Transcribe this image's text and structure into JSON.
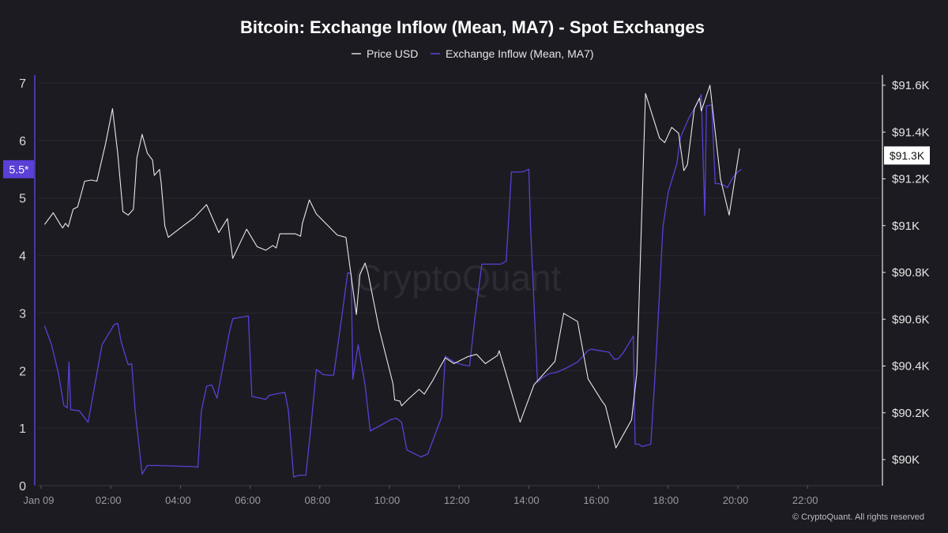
{
  "chart_data": {
    "type": "line",
    "title": "Bitcoin: Exchange Inflow (Mean, MA7) - Spot Exchanges",
    "legend_placement": "top-center",
    "grid": true,
    "watermark": "CryptoQuant",
    "copyright": "© CryptoQuant. All rights reserved",
    "x_axis": {
      "unit": "hours since Jan 09 00:00",
      "range": [
        0,
        24
      ],
      "ticks": [
        {
          "x": 0,
          "label": "Jan 09"
        },
        {
          "x": 2,
          "label": "02:00"
        },
        {
          "x": 4,
          "label": "04:00"
        },
        {
          "x": 6,
          "label": "06:00"
        },
        {
          "x": 8,
          "label": "08:00"
        },
        {
          "x": 10,
          "label": "10:00"
        },
        {
          "x": 12,
          "label": "12:00"
        },
        {
          "x": 14,
          "label": "14:00"
        },
        {
          "x": 16,
          "label": "16:00"
        },
        {
          "x": 18,
          "label": "18:00"
        },
        {
          "x": 20,
          "label": "20:00"
        },
        {
          "x": 22,
          "label": "22:00"
        }
      ]
    },
    "y_left": {
      "range": [
        0,
        7
      ],
      "ticks": [
        {
          "v": 0,
          "label": "0"
        },
        {
          "v": 1,
          "label": "1"
        },
        {
          "v": 2,
          "label": "2"
        },
        {
          "v": 3,
          "label": "3"
        },
        {
          "v": 4,
          "label": "4"
        },
        {
          "v": 5,
          "label": "5"
        },
        {
          "v": 6,
          "label": "6"
        },
        {
          "v": 7,
          "label": "7"
        }
      ],
      "current_label": "5.5*",
      "current_value": 5.5,
      "color": "#5b3fd6"
    },
    "y_right": {
      "unit": "USD",
      "range": [
        89890,
        91650
      ],
      "ticks": [
        {
          "v": 90000,
          "label": "$90K"
        },
        {
          "v": 90200,
          "label": "$90.2K"
        },
        {
          "v": 90400,
          "label": "$90.4K"
        },
        {
          "v": 90600,
          "label": "$90.6K"
        },
        {
          "v": 90800,
          "label": "$90.8K"
        },
        {
          "v": 91000,
          "label": "$91K"
        },
        {
          "v": 91200,
          "label": "$91.2K"
        },
        {
          "v": 91400,
          "label": "$91.4K"
        },
        {
          "v": 91600,
          "label": "$91.6K"
        }
      ],
      "current_label": "$91.3K",
      "current_value": 91300
    },
    "series": [
      {
        "name": "Price USD",
        "axis": "right",
        "color": "#e8e8e8",
        "points": [
          [
            0.1,
            91005
          ],
          [
            0.35,
            91055
          ],
          [
            0.55,
            91005
          ],
          [
            0.62,
            90990
          ],
          [
            0.7,
            91010
          ],
          [
            0.78,
            90995
          ],
          [
            0.92,
            91070
          ],
          [
            1.05,
            91080
          ],
          [
            1.25,
            91190
          ],
          [
            1.45,
            91195
          ],
          [
            1.6,
            91190
          ],
          [
            1.85,
            91350
          ],
          [
            2.05,
            91500
          ],
          [
            2.2,
            91310
          ],
          [
            2.35,
            91060
          ],
          [
            2.5,
            91045
          ],
          [
            2.65,
            91070
          ],
          [
            2.75,
            91290
          ],
          [
            2.9,
            91390
          ],
          [
            3.05,
            91310
          ],
          [
            3.2,
            91280
          ],
          [
            3.25,
            91215
          ],
          [
            3.4,
            91240
          ],
          [
            3.45,
            91180
          ],
          [
            3.55,
            91000
          ],
          [
            3.65,
            90950
          ],
          [
            4.0,
            90990
          ],
          [
            4.4,
            91035
          ],
          [
            4.75,
            91090
          ],
          [
            5.1,
            90970
          ],
          [
            5.35,
            91030
          ],
          [
            5.5,
            90860
          ],
          [
            5.9,
            90985
          ],
          [
            6.2,
            90910
          ],
          [
            6.45,
            90895
          ],
          [
            6.65,
            90915
          ],
          [
            6.75,
            90905
          ],
          [
            6.85,
            90965
          ],
          [
            7.3,
            90965
          ],
          [
            7.45,
            90955
          ],
          [
            7.5,
            91010
          ],
          [
            7.7,
            91110
          ],
          [
            7.9,
            91050
          ],
          [
            8.2,
            91005
          ],
          [
            8.5,
            90960
          ],
          [
            8.75,
            90950
          ],
          [
            9.05,
            90620
          ],
          [
            9.15,
            90790
          ],
          [
            9.3,
            90840
          ],
          [
            9.38,
            90800
          ],
          [
            9.7,
            90560
          ],
          [
            10.1,
            90325
          ],
          [
            10.15,
            90255
          ],
          [
            10.3,
            90250
          ],
          [
            10.35,
            90230
          ],
          [
            10.55,
            90260
          ],
          [
            10.85,
            90300
          ],
          [
            11.0,
            90280
          ],
          [
            11.25,
            90340
          ],
          [
            11.45,
            90395
          ],
          [
            11.6,
            90435
          ],
          [
            11.85,
            90410
          ],
          [
            12.25,
            90440
          ],
          [
            12.5,
            90450
          ],
          [
            12.75,
            90410
          ],
          [
            13.1,
            90445
          ],
          [
            13.15,
            90465
          ],
          [
            13.35,
            90365
          ],
          [
            13.75,
            90160
          ],
          [
            14.15,
            90320
          ],
          [
            14.75,
            90420
          ],
          [
            15.0,
            90625
          ],
          [
            15.4,
            90590
          ],
          [
            15.7,
            90345
          ],
          [
            16.1,
            90250
          ],
          [
            16.2,
            90230
          ],
          [
            16.5,
            90050
          ],
          [
            16.95,
            90170
          ],
          [
            17.1,
            90370
          ],
          [
            17.35,
            91565
          ],
          [
            17.75,
            91375
          ],
          [
            17.9,
            91355
          ],
          [
            18.1,
            91420
          ],
          [
            18.3,
            91395
          ],
          [
            18.45,
            91235
          ],
          [
            18.55,
            91260
          ],
          [
            18.75,
            91500
          ],
          [
            18.9,
            91545
          ],
          [
            18.95,
            91490
          ],
          [
            19.2,
            91600
          ],
          [
            19.5,
            91200
          ],
          [
            19.75,
            91045
          ],
          [
            20.05,
            91330
          ]
        ]
      },
      {
        "name": "Exchange Inflow (Mean, MA7)",
        "axis": "left",
        "color": "#5b3fd6",
        "points": [
          [
            0.1,
            2.78
          ],
          [
            0.3,
            2.45
          ],
          [
            0.5,
            1.95
          ],
          [
            0.65,
            1.4
          ],
          [
            0.75,
            1.35
          ],
          [
            0.8,
            2.15
          ],
          [
            0.85,
            1.32
          ],
          [
            1.1,
            1.3
          ],
          [
            1.35,
            1.1
          ],
          [
            1.75,
            2.45
          ],
          [
            1.9,
            2.6
          ],
          [
            2.1,
            2.8
          ],
          [
            2.2,
            2.82
          ],
          [
            2.3,
            2.5
          ],
          [
            2.5,
            2.1
          ],
          [
            2.6,
            2.12
          ],
          [
            2.7,
            1.3
          ],
          [
            2.9,
            0.2
          ],
          [
            3.05,
            0.35
          ],
          [
            3.3,
            0.35
          ],
          [
            4.4,
            0.33
          ],
          [
            4.5,
            0.32
          ],
          [
            4.6,
            1.3
          ],
          [
            4.75,
            1.73
          ],
          [
            4.9,
            1.75
          ],
          [
            5.05,
            1.52
          ],
          [
            5.4,
            2.65
          ],
          [
            5.5,
            2.9
          ],
          [
            5.95,
            2.95
          ],
          [
            6.05,
            1.55
          ],
          [
            6.3,
            1.52
          ],
          [
            6.45,
            1.5
          ],
          [
            6.55,
            1.57
          ],
          [
            6.8,
            1.6
          ],
          [
            7.0,
            1.62
          ],
          [
            7.1,
            1.3
          ],
          [
            7.25,
            0.15
          ],
          [
            7.4,
            0.18
          ],
          [
            7.6,
            0.18
          ],
          [
            7.75,
            1.05
          ],
          [
            7.9,
            2.02
          ],
          [
            8.1,
            1.93
          ],
          [
            8.25,
            1.92
          ],
          [
            8.4,
            1.92
          ],
          [
            8.6,
            2.8
          ],
          [
            8.8,
            3.7
          ],
          [
            8.9,
            3.68
          ],
          [
            8.95,
            1.85
          ],
          [
            9.1,
            2.45
          ],
          [
            9.3,
            1.75
          ],
          [
            9.45,
            0.95
          ],
          [
            9.75,
            1.05
          ],
          [
            10.05,
            1.15
          ],
          [
            10.2,
            1.17
          ],
          [
            10.35,
            1.1
          ],
          [
            10.5,
            0.62
          ],
          [
            10.9,
            0.5
          ],
          [
            11.1,
            0.55
          ],
          [
            11.5,
            1.2
          ],
          [
            11.6,
            2.25
          ],
          [
            11.85,
            2.15
          ],
          [
            12.1,
            2.1
          ],
          [
            12.3,
            2.08
          ],
          [
            12.45,
            2.9
          ],
          [
            12.65,
            3.85
          ],
          [
            12.85,
            3.85
          ],
          [
            13.2,
            3.85
          ],
          [
            13.35,
            3.9
          ],
          [
            13.5,
            5.45
          ],
          [
            13.75,
            5.45
          ],
          [
            13.85,
            5.46
          ],
          [
            14.0,
            5.5
          ],
          [
            14.05,
            4.5
          ],
          [
            14.25,
            1.8
          ],
          [
            14.4,
            1.88
          ],
          [
            14.6,
            1.95
          ],
          [
            14.8,
            1.97
          ],
          [
            15.1,
            2.05
          ],
          [
            15.4,
            2.15
          ],
          [
            15.7,
            2.35
          ],
          [
            15.8,
            2.37
          ],
          [
            16.3,
            2.32
          ],
          [
            16.45,
            2.2
          ],
          [
            16.55,
            2.2
          ],
          [
            16.7,
            2.3
          ],
          [
            17.0,
            2.6
          ],
          [
            17.05,
            0.72
          ],
          [
            17.15,
            0.72
          ],
          [
            17.25,
            0.68
          ],
          [
            17.5,
            0.72
          ],
          [
            17.65,
            2.2
          ],
          [
            17.85,
            4.5
          ],
          [
            18.0,
            5.1
          ],
          [
            18.25,
            5.6
          ],
          [
            18.35,
            6.05
          ],
          [
            18.6,
            6.4
          ],
          [
            18.75,
            6.55
          ],
          [
            18.95,
            6.8
          ],
          [
            19.05,
            4.7
          ],
          [
            19.1,
            6.6
          ],
          [
            19.25,
            6.62
          ],
          [
            19.35,
            5.25
          ],
          [
            19.45,
            5.25
          ],
          [
            19.6,
            5.22
          ],
          [
            19.7,
            5.18
          ],
          [
            19.85,
            5.35
          ],
          [
            20.0,
            5.45
          ],
          [
            20.1,
            5.5
          ]
        ]
      }
    ]
  }
}
